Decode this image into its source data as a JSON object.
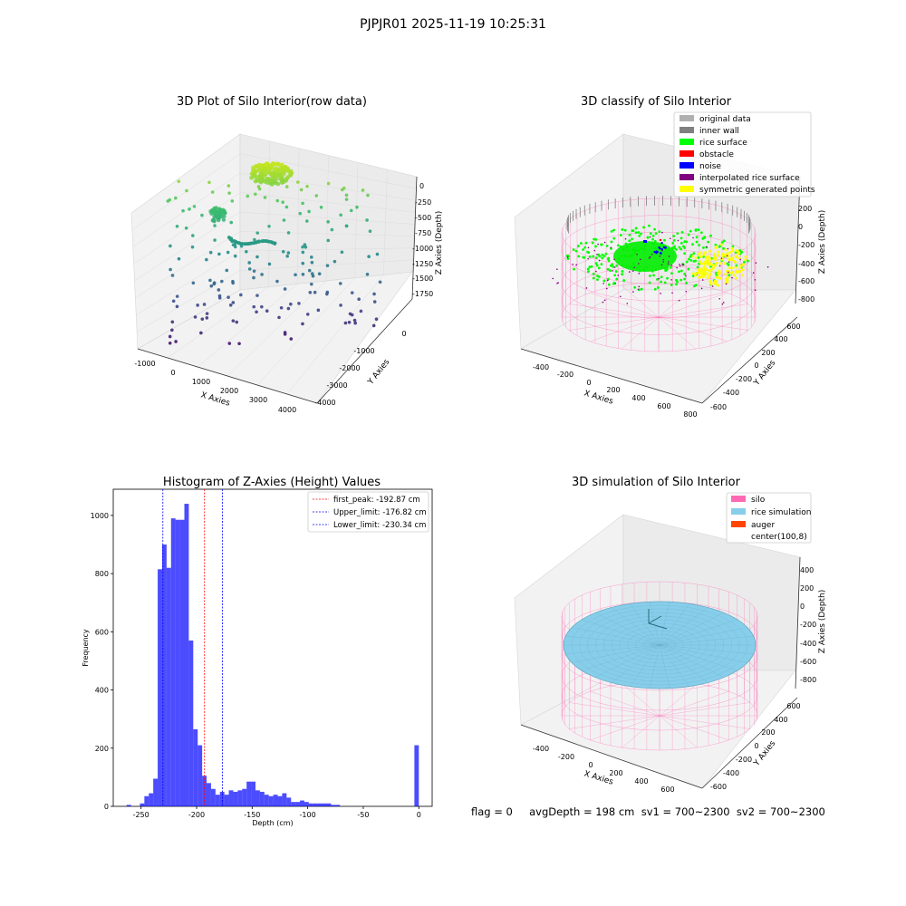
{
  "figure": {
    "suptitle": "PJPJR01 2025-11-19 10:25:31",
    "footer": "flag = 0     avgDepth = 198 cm  sv1 = 700~2300  sv2 = 700~2300"
  },
  "panels": {
    "raw": {
      "title": "3D Plot of Silo Interior(row data)",
      "xlabel": "X Axies",
      "ylabel": "Y Axies",
      "zlabel": "Z Axies (Depth)",
      "xticks": [
        "-1000",
        "0",
        "1000",
        "2000",
        "3000",
        "4000"
      ],
      "yticks": [
        "0",
        "-1000",
        "-2000",
        "-3000",
        "-4000"
      ],
      "zticks": [
        "0",
        "-250",
        "-500",
        "-750",
        "-1000",
        "-1250",
        "-1500",
        "-1750"
      ]
    },
    "classify": {
      "title": "3D classify of Silo Interior",
      "xlabel": "X Axies",
      "ylabel": "Y Axies",
      "zlabel": "Z Axies (Depth)",
      "xticks": [
        "-400",
        "-200",
        "0",
        "200",
        "400",
        "600",
        "800"
      ],
      "yticks": [
        "600",
        "400",
        "200",
        "0",
        "-200",
        "-400",
        "-600"
      ],
      "zticks": [
        "200",
        "0",
        "-200",
        "-400",
        "-600",
        "-800"
      ],
      "legend": [
        {
          "label": "original data",
          "color": "#b0b0b0"
        },
        {
          "label": "inner wall",
          "color": "#808080"
        },
        {
          "label": "rice surface",
          "color": "#00ff00"
        },
        {
          "label": "obstacle",
          "color": "#ff0000"
        },
        {
          "label": "noise",
          "color": "#0000ff"
        },
        {
          "label": "interpolated rice surface",
          "color": "#800080"
        },
        {
          "label": "symmetric generated points",
          "color": "#ffff00"
        }
      ]
    },
    "simulation": {
      "title": "3D simulation of Silo Interior",
      "xlabel": "X Axies",
      "ylabel": "Y Axies",
      "zlabel": "Z Axies (Depth)",
      "xticks": [
        "-400",
        "-200",
        "0",
        "200",
        "400",
        "600"
      ],
      "yticks": [
        "600",
        "400",
        "200",
        "0",
        "-200",
        "-400",
        "-600"
      ],
      "zticks": [
        "400",
        "200",
        "0",
        "-200",
        "-400",
        "-600",
        "-800"
      ],
      "legend": [
        {
          "label": "silo",
          "color": "#ff69b4"
        },
        {
          "label": "rice simulation",
          "color": "#87ceeb"
        },
        {
          "label": "auger",
          "color": "#ff4500"
        },
        {
          "label": "center(100,8)",
          "color": ""
        }
      ]
    }
  },
  "chart_data": [
    {
      "type": "bar",
      "title": "Histogram of Z-Axies (Height) Values",
      "xlabel": "Depth (cm)",
      "ylabel": "Frequency",
      "xlim": [
        -275,
        12
      ],
      "ylim": [
        0,
        1090
      ],
      "xticks": [
        -250,
        -200,
        -150,
        -100,
        -50,
        0
      ],
      "yticks": [
        0,
        200,
        400,
        600,
        800,
        1000
      ],
      "bar_color": "#0000ff",
      "bins": [
        [
          -263,
          -259,
          5
        ],
        [
          -251,
          -247,
          10
        ],
        [
          -247,
          -243,
          35
        ],
        [
          -243,
          -239,
          45
        ],
        [
          -239,
          -235,
          95
        ],
        [
          -235,
          -231,
          815
        ],
        [
          -231,
          -227,
          900
        ],
        [
          -227,
          -223,
          820
        ],
        [
          -223,
          -219,
          990
        ],
        [
          -219,
          -215,
          985
        ],
        [
          -215,
          -211,
          985
        ],
        [
          -211,
          -207,
          1040
        ],
        [
          -207,
          -203,
          570
        ],
        [
          -203,
          -199,
          265
        ],
        [
          -199,
          -195,
          210
        ],
        [
          -195,
          -191,
          105
        ],
        [
          -191,
          -187,
          80
        ],
        [
          -187,
          -183,
          60
        ],
        [
          -183,
          -179,
          40
        ],
        [
          -179,
          -175,
          50
        ],
        [
          -175,
          -171,
          40
        ],
        [
          -171,
          -167,
          55
        ],
        [
          -167,
          -163,
          50
        ],
        [
          -163,
          -159,
          55
        ],
        [
          -159,
          -155,
          60
        ],
        [
          -155,
          -151,
          85
        ],
        [
          -151,
          -147,
          85
        ],
        [
          -147,
          -143,
          55
        ],
        [
          -143,
          -139,
          50
        ],
        [
          -139,
          -135,
          40
        ],
        [
          -135,
          -131,
          35
        ],
        [
          -131,
          -127,
          40
        ],
        [
          -127,
          -123,
          35
        ],
        [
          -123,
          -119,
          45
        ],
        [
          -119,
          -115,
          30
        ],
        [
          -115,
          -111,
          15
        ],
        [
          -111,
          -107,
          15
        ],
        [
          -107,
          -103,
          20
        ],
        [
          -103,
          -99,
          15
        ],
        [
          -99,
          -95,
          10
        ],
        [
          -95,
          -91,
          10
        ],
        [
          -91,
          -87,
          10
        ],
        [
          -87,
          -83,
          10
        ],
        [
          -83,
          -79,
          10
        ],
        [
          -79,
          -75,
          5
        ],
        [
          -75,
          -71,
          5
        ],
        [
          -4,
          0,
          210
        ]
      ],
      "vlines": [
        {
          "label": "first_peak: -192.87 cm",
          "x": -192.87,
          "color": "#ff0000"
        },
        {
          "label": "Upper_limit: -176.82 cm",
          "x": -176.82,
          "color": "#0000ff"
        },
        {
          "label": "Lower_limit: -230.34 cm",
          "x": -230.34,
          "color": "#0000ff"
        }
      ]
    }
  ]
}
